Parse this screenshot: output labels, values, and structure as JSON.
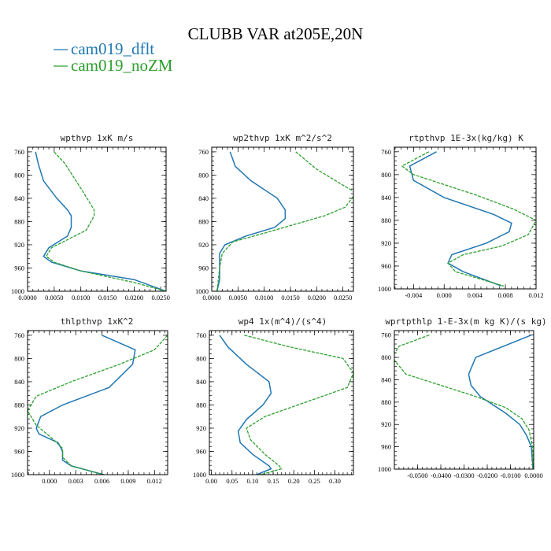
{
  "title": "CLUBB VAR at205E,20N",
  "legend": [
    {
      "label": "cam019_dflt",
      "color": "#1f77b4",
      "dash": false
    },
    {
      "label": "cam019_noZM",
      "color": "#2ca02c",
      "dash": true
    }
  ],
  "chart_data": [
    {
      "type": "line",
      "title": "wpthvp  1xK m/s",
      "xlim": [
        0,
        0.026
      ],
      "ylim": [
        1000,
        752
      ],
      "xticks": [
        0,
        0.005,
        0.01,
        0.015,
        0.02,
        0.025
      ],
      "xtick_labels": [
        "0.0000",
        "0.0050",
        "0.0100",
        "0.0150",
        "0.0200",
        "0.0250"
      ],
      "yticks": [
        760,
        800,
        840,
        880,
        920,
        960,
        1000
      ],
      "series": [
        {
          "name": "cam019_dflt",
          "x": [
            0.0015,
            0.002,
            0.003,
            0.0055,
            0.0075,
            0.0082,
            0.0082,
            0.0075,
            0.004,
            0.003,
            0.0045,
            0.01,
            0.02,
            0.026
          ],
          "y": [
            760,
            780,
            810,
            840,
            860,
            870,
            890,
            905,
            925,
            940,
            950,
            965,
            980,
            1000
          ]
        },
        {
          "name": "cam019_noZM",
          "x": [
            0.005,
            0.007,
            0.0105,
            0.0125,
            0.0125,
            0.011,
            0.0045,
            0.0035,
            0.005,
            0.01,
            0.02,
            0.026
          ],
          "y": [
            760,
            780,
            830,
            860,
            870,
            895,
            925,
            940,
            950,
            965,
            985,
            1000
          ]
        }
      ]
    },
    {
      "type": "line",
      "title": "wp2thvp  1xK m^2/s^2",
      "xlim": [
        0,
        0.027
      ],
      "ylim": [
        1000,
        752
      ],
      "xticks": [
        0,
        0.005,
        0.01,
        0.015,
        0.02,
        0.025
      ],
      "xtick_labels": [
        "0.0000",
        "0.0050",
        "0.0100",
        "0.0150",
        "0.0200",
        "0.0250"
      ],
      "yticks": [
        760,
        800,
        840,
        880,
        920,
        960,
        1000
      ],
      "series": [
        {
          "name": "cam019_dflt",
          "x": [
            0.0035,
            0.0045,
            0.0075,
            0.0125,
            0.014,
            0.014,
            0.012,
            0.0065,
            0.0025,
            0.0015,
            0.0015,
            0.0015,
            0.001
          ],
          "y": [
            760,
            785,
            810,
            840,
            860,
            875,
            890,
            905,
            920,
            935,
            960,
            980,
            1000
          ]
        },
        {
          "name": "cam019_noZM",
          "x": [
            0.016,
            0.02,
            0.0255,
            0.0275,
            0.0255,
            0.0215,
            0.01,
            0.004,
            0.002,
            0.0015,
            0.001
          ],
          "y": [
            760,
            790,
            820,
            830,
            855,
            870,
            900,
            915,
            935,
            960,
            1000
          ]
        }
      ]
    },
    {
      "type": "line",
      "title": "rtpthvp  1E-3x(kg/kg) K",
      "xlim": [
        -0.0065,
        0.012
      ],
      "ylim": [
        1000,
        752
      ],
      "xticks": [
        -0.004,
        0,
        0.004,
        0.008,
        0.012
      ],
      "xtick_labels": [
        "-0.004",
        "0.000",
        "0.004",
        "0.008",
        "0.012"
      ],
      "yticks": [
        760,
        800,
        840,
        880,
        920,
        960,
        1000
      ],
      "series": [
        {
          "name": "cam019_dflt",
          "x": [
            -0.001,
            -0.0045,
            -0.004,
            0.0,
            0.0065,
            0.0088,
            0.0085,
            0.0055,
            0.001,
            0.0005,
            0.0025,
            0.0075
          ],
          "y": [
            760,
            785,
            810,
            840,
            870,
            885,
            900,
            920,
            940,
            955,
            970,
            995
          ]
        },
        {
          "name": "cam019_noZM",
          "x": [
            -0.002,
            -0.0055,
            -0.004,
            0.004,
            0.009,
            0.012,
            0.011,
            0.0075,
            0.0025,
            0.0005,
            0.0015,
            0.0078
          ],
          "y": [
            760,
            785,
            800,
            835,
            860,
            880,
            905,
            925,
            940,
            955,
            970,
            995
          ]
        }
      ]
    },
    {
      "type": "line",
      "title": "thlpthvp  1xK^2",
      "xlim": [
        -0.0025,
        0.0135
      ],
      "ylim": [
        1000,
        752
      ],
      "xticks": [
        0,
        0.003,
        0.006,
        0.009,
        0.012
      ],
      "xtick_labels": [
        "0.000",
        "0.003",
        "0.006",
        "0.009",
        "0.012"
      ],
      "yticks": [
        760,
        800,
        840,
        880,
        920,
        960,
        1000
      ],
      "series": [
        {
          "name": "cam019_dflt",
          "x": [
            0.006,
            0.0098,
            0.0095,
            0.0068,
            0.0015,
            -0.001,
            -0.0015,
            -0.0012,
            0.001,
            0.0015,
            0.0015,
            0.0025,
            0.0062
          ],
          "y": [
            760,
            785,
            810,
            850,
            880,
            900,
            920,
            930,
            945,
            960,
            975,
            985,
            1000
          ]
        },
        {
          "name": "cam019_noZM",
          "x": [
            0.0135,
            0.012,
            0.008,
            0.0025,
            -0.0015,
            -0.0025,
            -0.0015,
            0.0005,
            0.0015,
            0.0015,
            0.0025,
            0.0062
          ],
          "y": [
            760,
            785,
            810,
            840,
            865,
            890,
            915,
            940,
            955,
            970,
            985,
            1000
          ]
        }
      ]
    },
    {
      "type": "line",
      "title": "wp4  1x(m^4)/(s^4)",
      "xlim": [
        -0.005,
        0.345
      ],
      "ylim": [
        1000,
        752
      ],
      "xticks": [
        0,
        0.05,
        0.1,
        0.15,
        0.2,
        0.25,
        0.3
      ],
      "xtick_labels": [
        "0.00",
        "0.05",
        "0.10",
        "0.15",
        "0.20",
        "0.25",
        "0.30"
      ],
      "yticks": [
        760,
        800,
        840,
        880,
        920,
        960,
        1000
      ],
      "series": [
        {
          "name": "cam019_dflt",
          "x": [
            0.02,
            0.04,
            0.085,
            0.14,
            0.145,
            0.125,
            0.085,
            0.065,
            0.07,
            0.1,
            0.14,
            0.145,
            0.11
          ],
          "y": [
            760,
            780,
            810,
            840,
            860,
            880,
            905,
            925,
            945,
            965,
            985,
            990,
            1000
          ]
        },
        {
          "name": "cam019_noZM",
          "x": [
            0.08,
            0.19,
            0.32,
            0.345,
            0.33,
            0.25,
            0.13,
            0.085,
            0.095,
            0.13,
            0.165,
            0.17,
            0.12
          ],
          "y": [
            760,
            780,
            800,
            825,
            850,
            870,
            900,
            920,
            940,
            965,
            985,
            990,
            1000
          ]
        }
      ]
    },
    {
      "type": "line",
      "title": "wprtpthlp  1-E-3x(m kg K)/(s kg)",
      "xlim": [
        -0.06,
        0.0
      ],
      "ylim": [
        1000,
        752
      ],
      "xticks": [
        -0.05,
        -0.04,
        -0.03,
        -0.02,
        -0.01,
        0.0
      ],
      "xtick_labels": [
        "-0.0500",
        "-0.0400",
        "-0.0300",
        "-0.0200",
        "-0.0100",
        "0.0000"
      ],
      "yticks": [
        760,
        800,
        840,
        880,
        920,
        960,
        1000
      ],
      "series": [
        {
          "name": "cam019_dflt",
          "x": [
            -0.001,
            -0.013,
            -0.025,
            -0.028,
            -0.027,
            -0.023,
            -0.012,
            -0.006,
            -0.003,
            -0.001,
            -0.0003
          ],
          "y": [
            760,
            780,
            800,
            830,
            850,
            870,
            900,
            920,
            940,
            960,
            1000
          ]
        },
        {
          "name": "cam019_noZM",
          "x": [
            -0.045,
            -0.058,
            -0.061,
            -0.055,
            -0.04,
            -0.025,
            -0.012,
            -0.005,
            -0.002,
            -0.0005,
            -0.0003
          ],
          "y": [
            760,
            780,
            800,
            830,
            850,
            870,
            890,
            910,
            930,
            960,
            1000
          ]
        }
      ]
    }
  ]
}
